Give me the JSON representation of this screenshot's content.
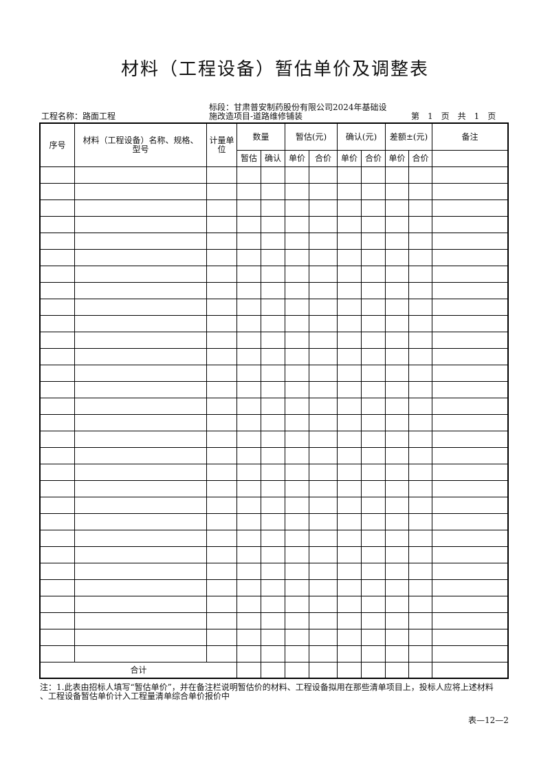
{
  "title": "材料（工程设备）暂估单价及调整表",
  "project_name": "工程名称：路面工程",
  "section_line1": "标段：甘肃普安制药股份有限公司2024年基础设",
  "section_line2": "施改造项目-道路维修铺装",
  "page_info": "第　1　页　共　1　页",
  "table": {
    "headers": {
      "seq": "序号",
      "name": "材料（工程设备）名称、规格、型号",
      "unit": "计量单位",
      "quantity": "数量",
      "estimate": "暂估(元)",
      "confirm": "确认(元)",
      "diff": "差额±(元)",
      "remark": "备注"
    },
    "subheaders": [
      "暂估",
      "确认",
      "单价",
      "合价",
      "单价",
      "合价",
      "单价",
      "合价"
    ],
    "total_label": "合计"
  },
  "note_line1": "注：1.此表由招标人填写“暂估单价”，并在备注栏说明暂估价的材料、工程设备拟用在那些清单项目上，投标人应将上述材料",
  "note_line2": "、工程设备暂估单价计入工程量清单综合单价报价中",
  "form_number": "表—12—2"
}
